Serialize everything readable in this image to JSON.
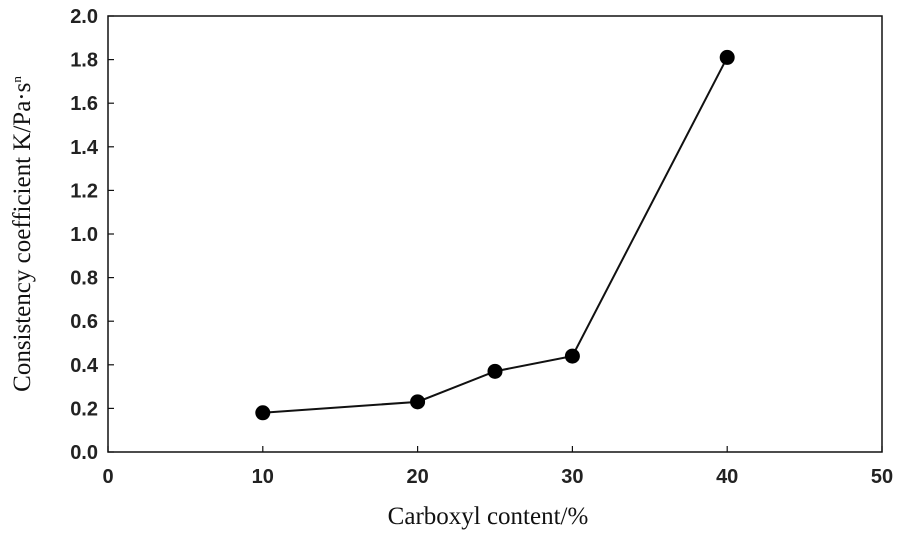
{
  "chart_data": {
    "type": "line",
    "title": "",
    "xlabel": "Carboxyl content/%",
    "ylabel": "Consistency coefficient K/Pa·s",
    "ylabel_superscript": "n",
    "xlim": [
      0,
      50
    ],
    "ylim": [
      0,
      2.0
    ],
    "xticks": [
      0,
      10,
      20,
      30,
      40,
      50
    ],
    "yticks": [
      "0.0",
      "0.2",
      "0.4",
      "0.6",
      "0.8",
      "1.0",
      "1.2",
      "1.4",
      "1.6",
      "1.8",
      "2.0"
    ],
    "grid": false,
    "legend": "none",
    "series": [
      {
        "x": [
          10,
          20,
          25,
          30,
          40
        ],
        "y": [
          0.18,
          0.23,
          0.37,
          0.44,
          1.81
        ]
      }
    ],
    "colors": {
      "line": "#111111",
      "marker": "#000000",
      "axis": "#111111"
    }
  }
}
